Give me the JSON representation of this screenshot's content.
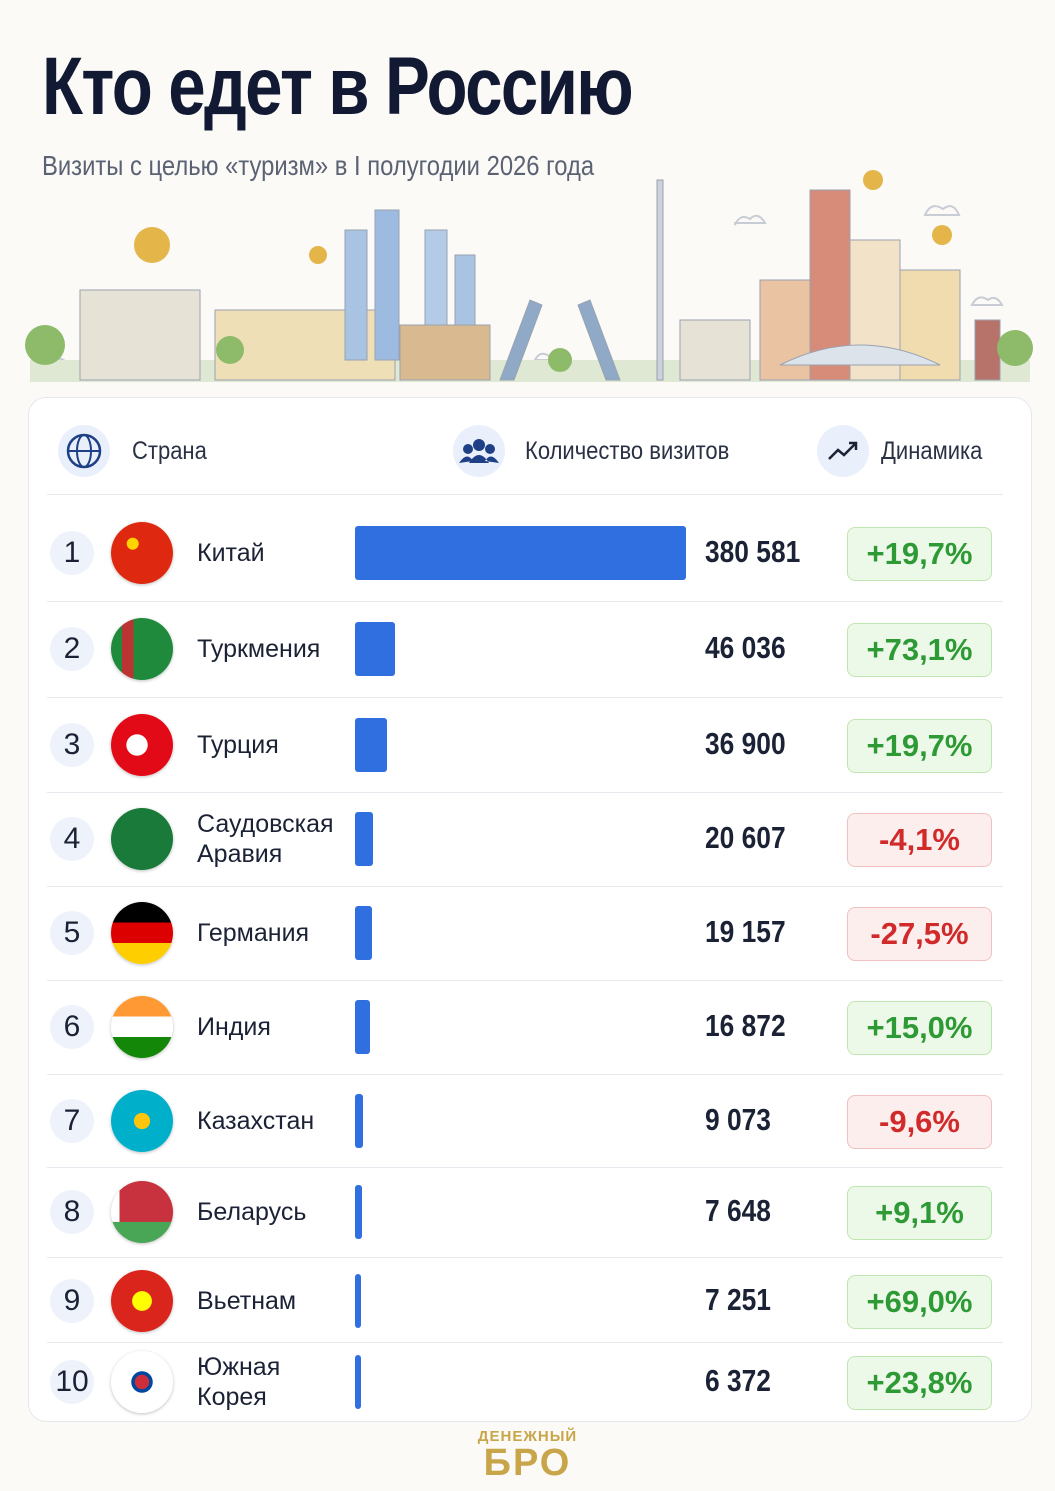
{
  "chart_data": {
    "type": "bar",
    "title": "Кто едет в Россию",
    "subtitle": "Визиты с целью «туризм» в I полугодии 2026 года",
    "columns": [
      "Страна",
      "Количество визитов",
      "Динамика"
    ],
    "ranks": [
      1,
      2,
      3,
      4,
      5,
      6,
      7,
      8,
      9,
      10
    ],
    "categories": [
      "Китай",
      "Туркмения",
      "Турция",
      "Саудовская Аравия",
      "Германия",
      "Индия",
      "Казахстан",
      "Беларусь",
      "Вьетнам",
      "Южная Корея"
    ],
    "values": [
      380581,
      46036,
      36900,
      20607,
      19157,
      16872,
      9073,
      7648,
      7251,
      6372
    ],
    "value_labels": [
      "380 581",
      "46 036",
      "36 900",
      "20 607",
      "19 157",
      "16 872",
      "9 073",
      "7 648",
      "7 251",
      "6 372"
    ],
    "color": "#2f6fe0",
    "changes": [
      19.7,
      73.1,
      19.7,
      -4.1,
      -27.5,
      15.0,
      -9.6,
      9.1,
      69.0,
      23.8
    ],
    "change_labels": [
      "+19,7%",
      "+73,1%",
      "+19,7%",
      "-4,1%",
      "-27,5%",
      "+15,0%",
      "-9,6%",
      "+9,1%",
      "+69,0%",
      "+23,8%"
    ],
    "logo": [
      "ДЕНЕЖНЫЙ",
      "БРО"
    ]
  }
}
